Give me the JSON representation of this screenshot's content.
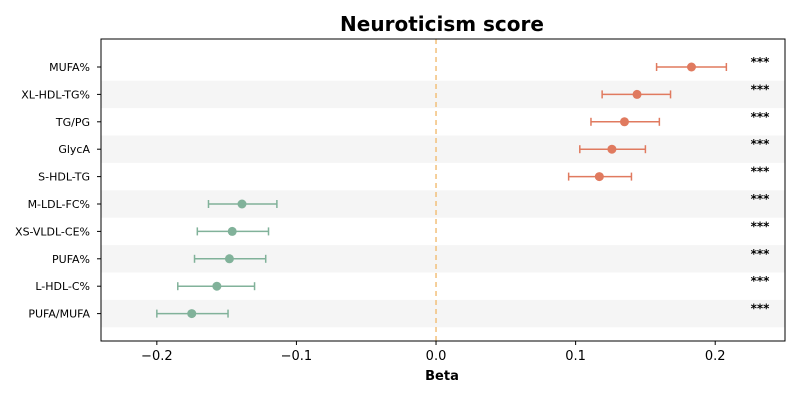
{
  "chart_data": {
    "type": "forest",
    "title": "Neuroticism score",
    "xlabel": "Beta",
    "xlim": [
      -0.24,
      0.25
    ],
    "xticks": [
      -0.2,
      -0.1,
      0.0,
      0.1,
      0.2
    ],
    "xtick_labels": [
      "−0.2",
      "−0.1",
      "0.0",
      "0.1",
      "0.2"
    ],
    "reference_line": 0.0,
    "colors": {
      "positive": "#e07a5f",
      "negative": "#81b29a",
      "reference": "#f2c07a",
      "band": "#f5f5f5"
    },
    "items": [
      {
        "label": "MUFA%",
        "beta": 0.183,
        "lo": 0.158,
        "hi": 0.208,
        "sig": "***"
      },
      {
        "label": "XL-HDL-TG%",
        "beta": 0.144,
        "lo": 0.119,
        "hi": 0.168,
        "sig": "***"
      },
      {
        "label": "TG/PG",
        "beta": 0.135,
        "lo": 0.111,
        "hi": 0.16,
        "sig": "***"
      },
      {
        "label": "GlycA",
        "beta": 0.126,
        "lo": 0.103,
        "hi": 0.15,
        "sig": "***"
      },
      {
        "label": "S-HDL-TG",
        "beta": 0.117,
        "lo": 0.095,
        "hi": 0.14,
        "sig": "***"
      },
      {
        "label": "M-LDL-FC%",
        "beta": -0.139,
        "lo": -0.163,
        "hi": -0.114,
        "sig": "***"
      },
      {
        "label": "XS-VLDL-CE%",
        "beta": -0.146,
        "lo": -0.171,
        "hi": -0.12,
        "sig": "***"
      },
      {
        "label": "PUFA%",
        "beta": -0.148,
        "lo": -0.173,
        "hi": -0.122,
        "sig": "***"
      },
      {
        "label": "L-HDL-C%",
        "beta": -0.157,
        "lo": -0.185,
        "hi": -0.13,
        "sig": "***"
      },
      {
        "label": "PUFA/MUFA",
        "beta": -0.175,
        "lo": -0.2,
        "hi": -0.149,
        "sig": "***"
      }
    ]
  }
}
